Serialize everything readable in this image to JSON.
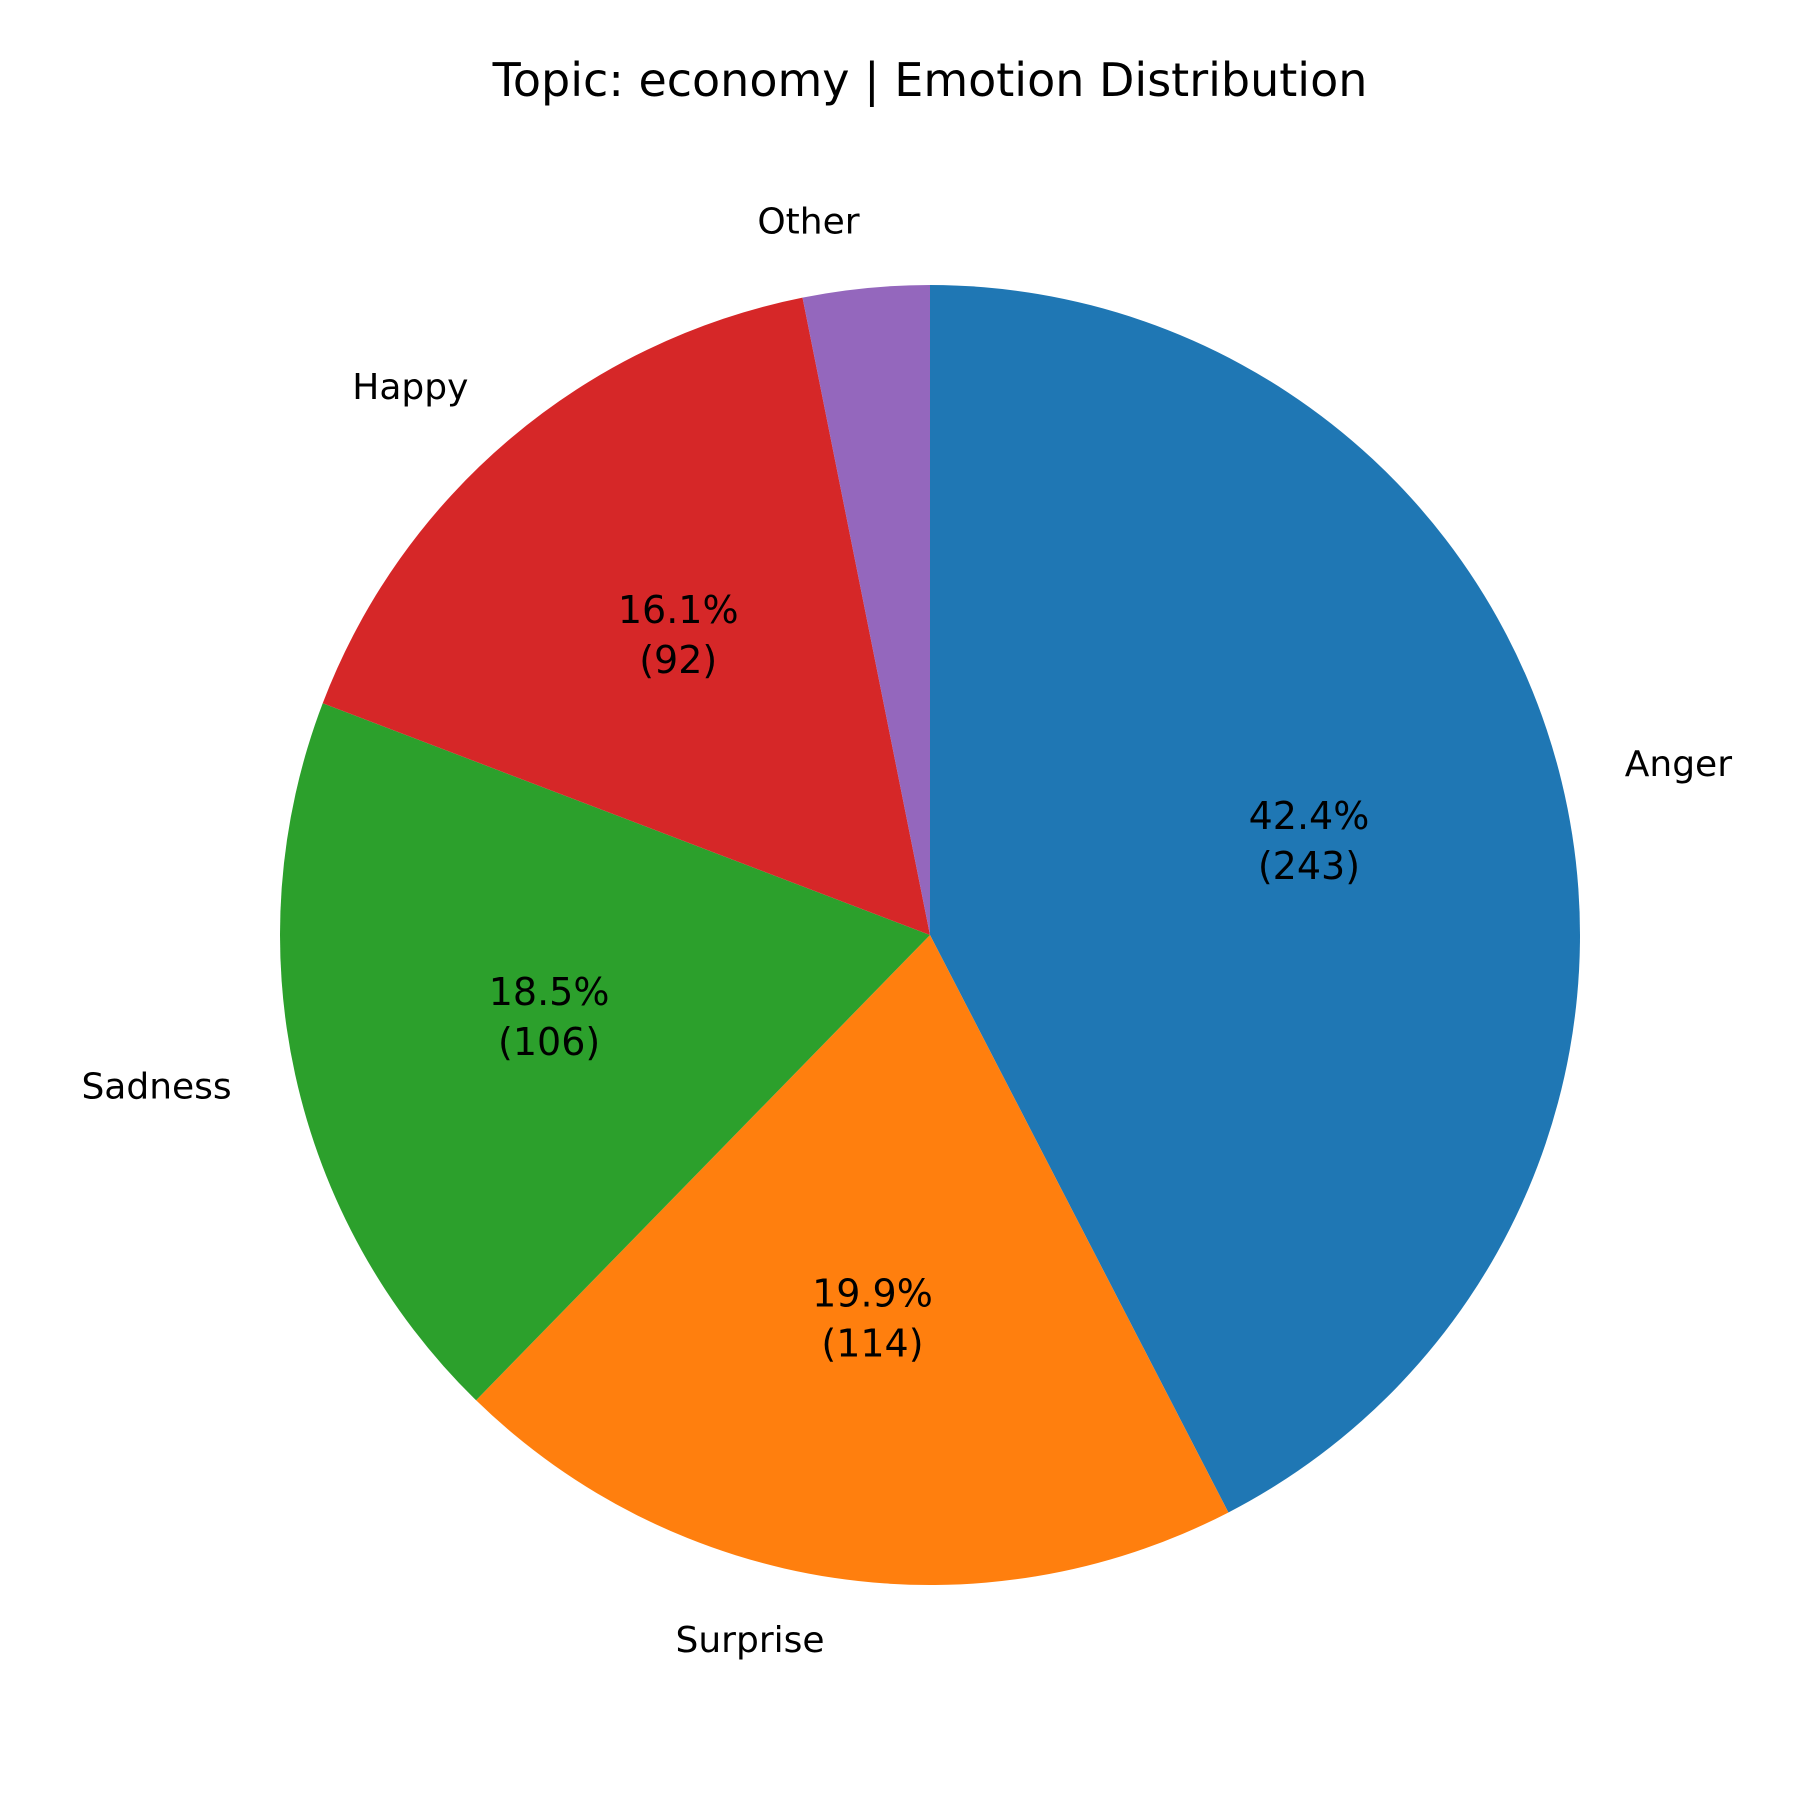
{
  "chart_data": {
    "type": "pie",
    "title": "Topic: economy | Emotion Distribution",
    "start": "top, clockwise",
    "slices": [
      {
        "label": "Anger",
        "value": 243,
        "percent_label": "42.4%",
        "count_label": "(243)",
        "color": "#1f77b4"
      },
      {
        "label": "Surprise",
        "value": 114,
        "percent_label": "19.9%",
        "count_label": "(114)",
        "color": "#ff7f0e"
      },
      {
        "label": "Sadness",
        "value": 106,
        "percent_label": "18.5%",
        "count_label": "(106)",
        "color": "#2ca02c"
      },
      {
        "label": "Happy",
        "value": 92,
        "percent_label": "16.1%",
        "count_label": "(92)",
        "color": "#d62728"
      },
      {
        "label": "Other",
        "value": 18,
        "percent_label": "",
        "count_label": "",
        "color": "#9467bd"
      }
    ]
  }
}
